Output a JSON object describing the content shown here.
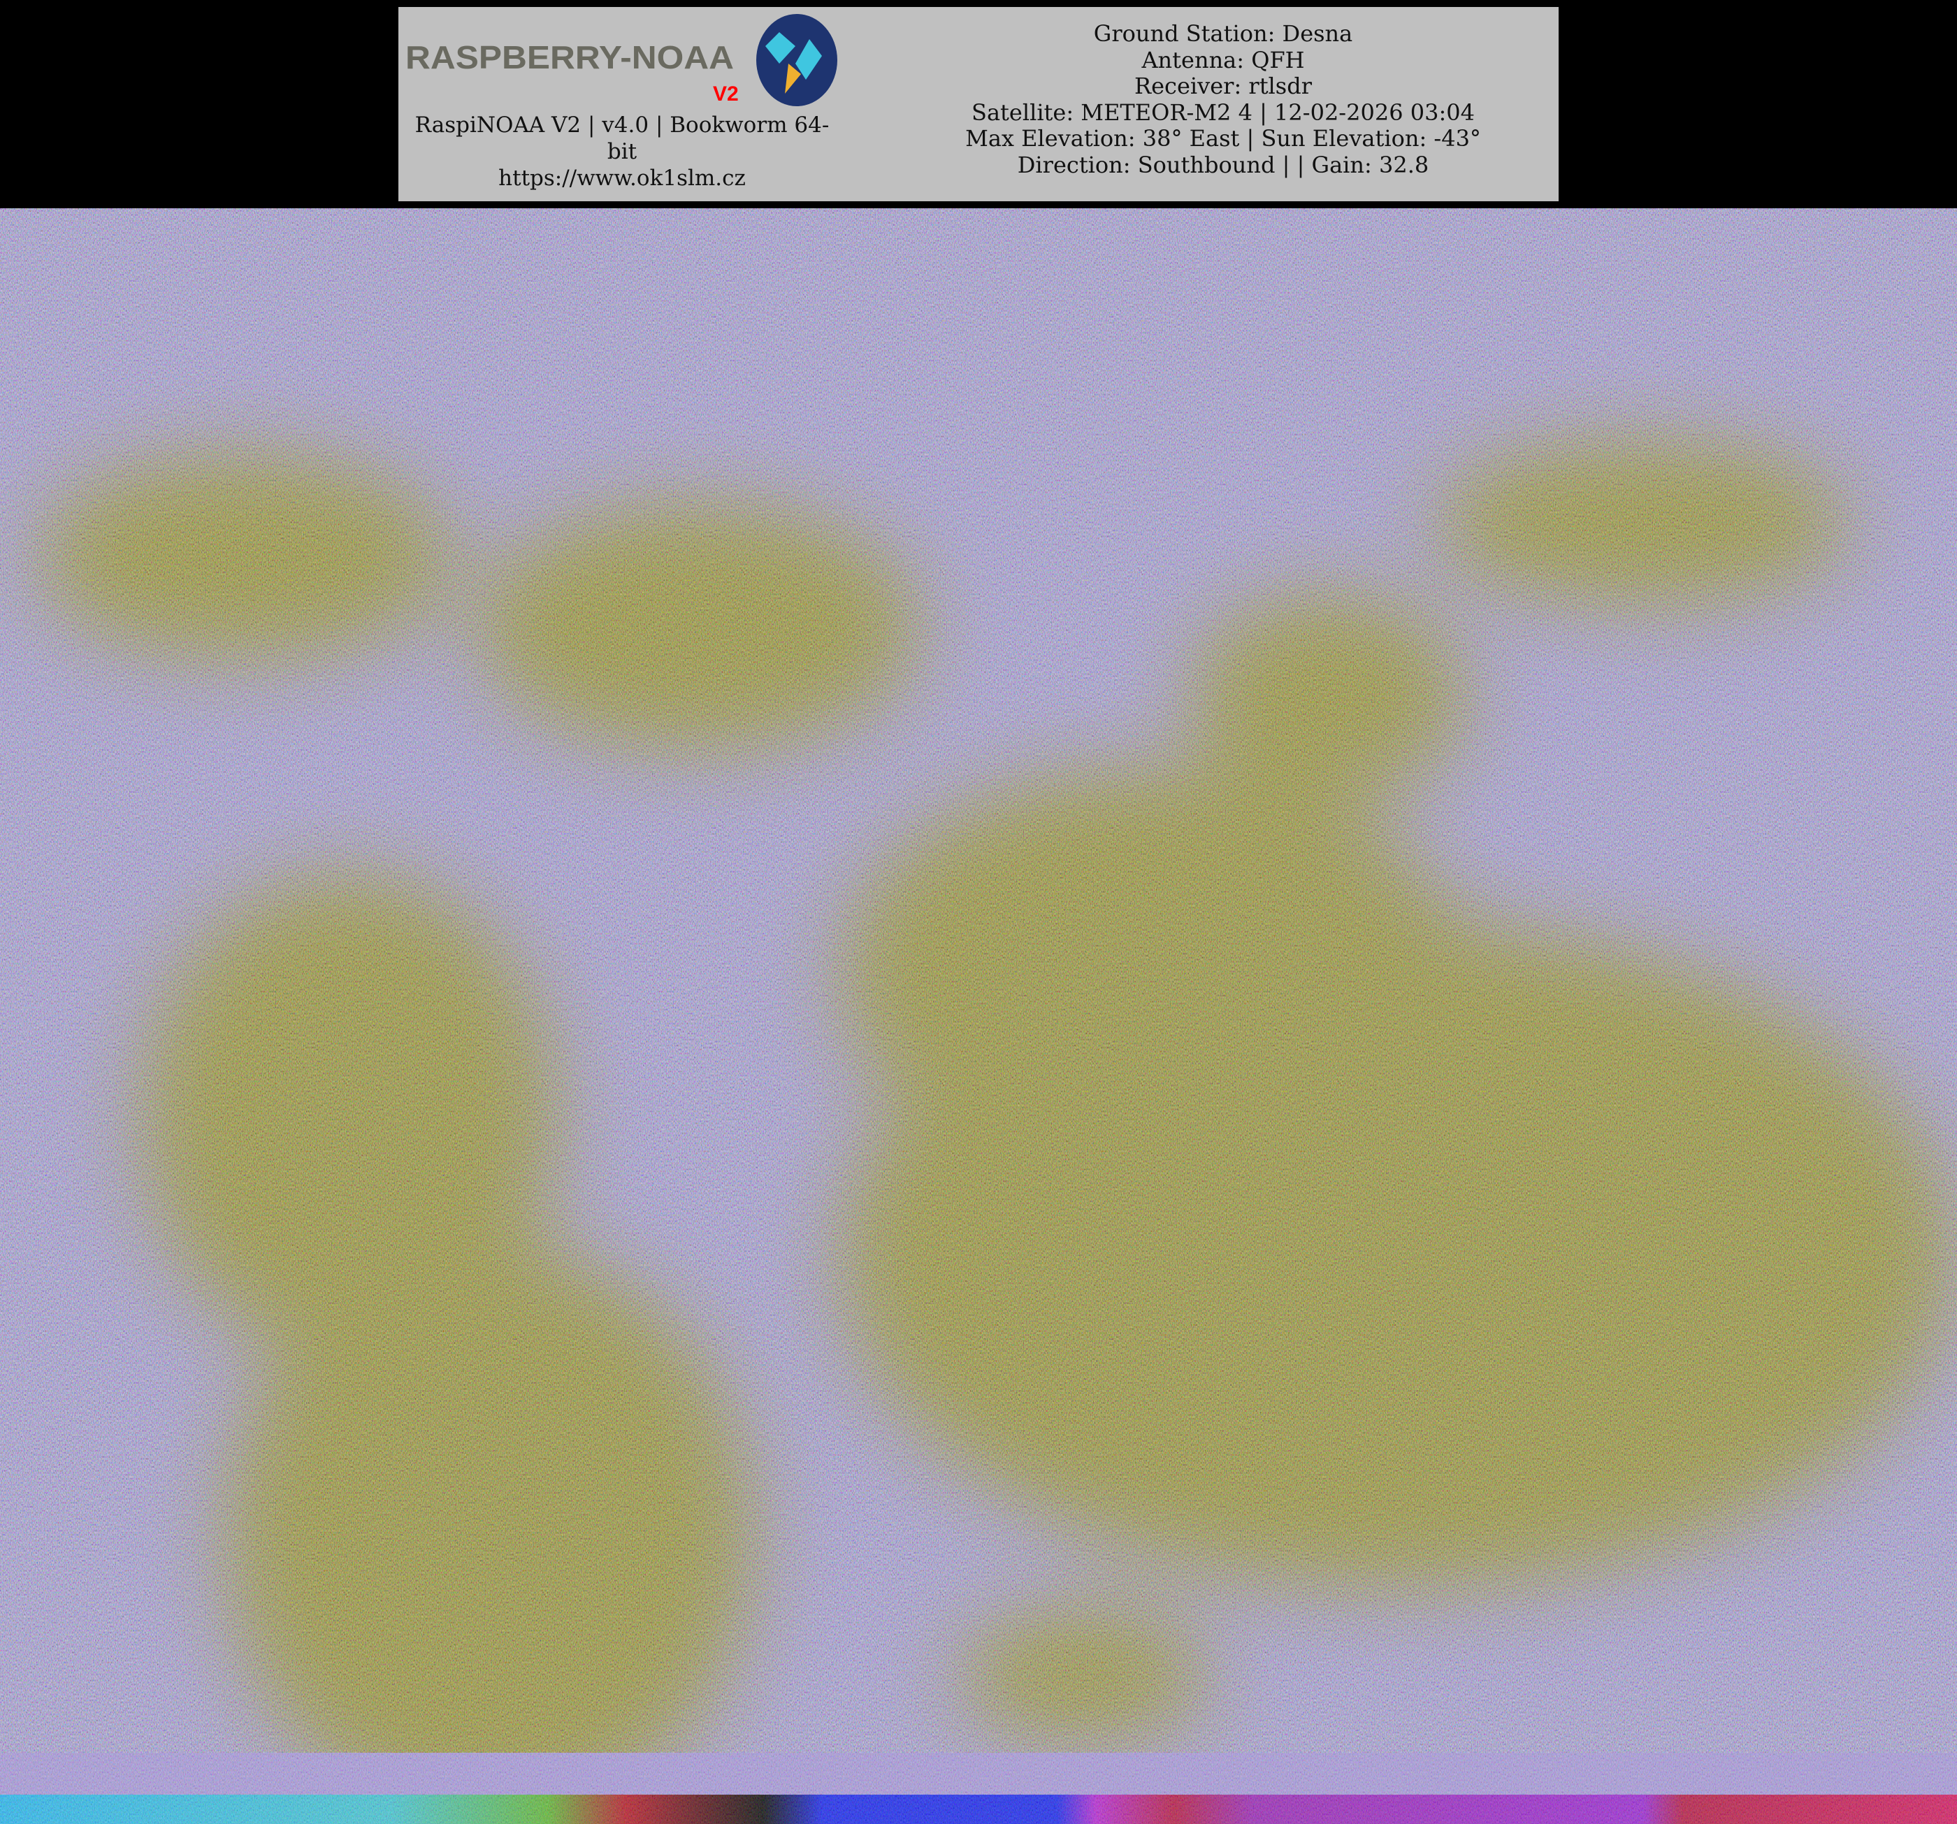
{
  "header": {
    "logo_text": "RASPBERRY-NOAA",
    "logo_badge": "V2",
    "software_line": "RaspiNOAA V2 | v4.0 | Bookworm 64-bit",
    "url": "https://www.ok1slm.cz",
    "info_lines": [
      "Ground Station: Desna",
      "Antenna: QFH",
      "Receiver: rtlsdr",
      "Satellite: METEOR-M2 4 | 12-02-2026 03:04",
      "Max Elevation: 38° East | Sun Elevation: -43°",
      "Direction: Southbound | | Gain: 32.8"
    ]
  },
  "image": {
    "type": "satellite-false-color-pass",
    "colors": {
      "cloud": "#b4aaf2",
      "land": "#a09a1c",
      "border_lines": "#ffff40",
      "background": "#000000",
      "header_bg": "#c0c0c0",
      "logo_circle": "#1e3470",
      "logo_v2": "#ff0000"
    }
  }
}
